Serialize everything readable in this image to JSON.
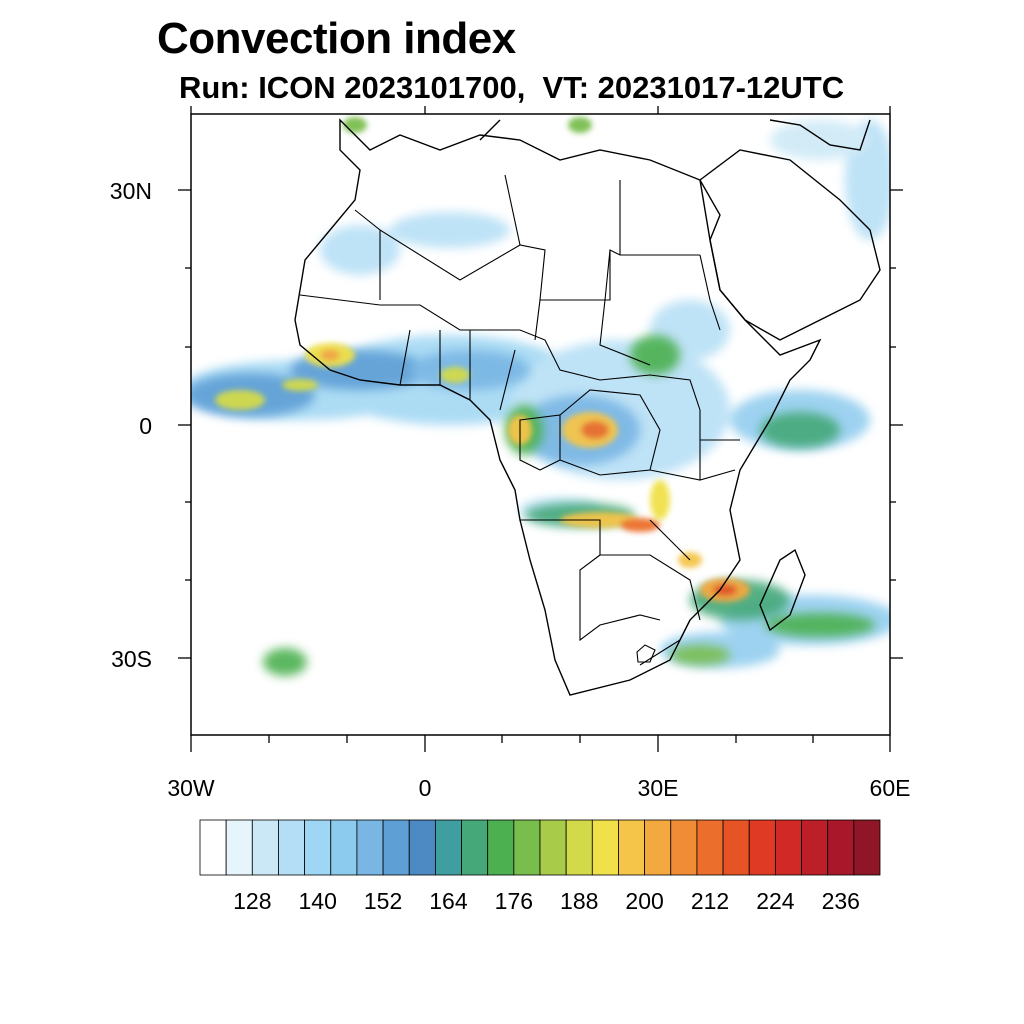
{
  "title": "Convection index",
  "subtitle": "Run: ICON 2023101700,  VT: 20231017-12UTC",
  "axes": {
    "lat_labels": [
      "30N",
      "0",
      "30S"
    ],
    "lon_labels": [
      "30W",
      "0",
      "30E",
      "60E"
    ]
  },
  "colorbar": {
    "labels": [
      "128",
      "140",
      "152",
      "164",
      "176",
      "188",
      "200",
      "212",
      "224",
      "236"
    ],
    "colors": [
      "#ffffff",
      "#e6f4fb",
      "#cbe8f6",
      "#b3def5",
      "#9ed6f3",
      "#8ccbee",
      "#79b6e4",
      "#5e9fd6",
      "#4d8ac4",
      "#3f9fa0",
      "#45a878",
      "#4cb050",
      "#79bd4d",
      "#a8cc4a",
      "#d3da4a",
      "#f0e14a",
      "#f5c54a",
      "#f4a840",
      "#f08c35",
      "#ec6e2c",
      "#e65426",
      "#df3a24",
      "#d12a26",
      "#bd1f28",
      "#a8182a",
      "#8e1626"
    ]
  },
  "map": {
    "region": "Africa",
    "lon_range": [
      -30,
      60
    ],
    "lat_range": [
      -40,
      40
    ]
  }
}
